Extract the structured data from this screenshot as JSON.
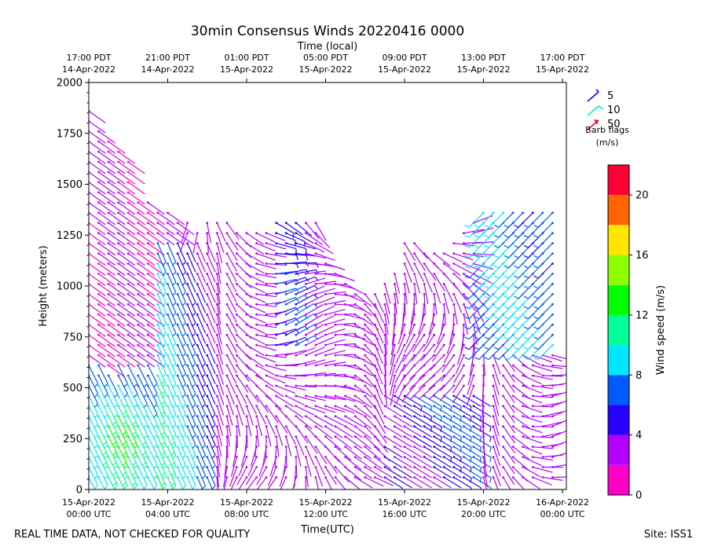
{
  "chart_data": {
    "type": "wind-barb-profile",
    "title": "30min Consensus Winds 20220416 0000",
    "top_axis_label": "Time (local)",
    "xlabel": "Time(UTC)",
    "ylabel": "Height (meters)",
    "ylim": [
      0,
      2000
    ],
    "xlim_hours_utc": [
      0,
      24.2
    ],
    "y_ticks": [
      "0",
      "250",
      "500",
      "750",
      "1000",
      "1250",
      "1500",
      "1750",
      "2000"
    ],
    "x_ticks_utc": [
      {
        "hour": 0,
        "line1": "15-Apr-2022",
        "line2": "00:00 UTC"
      },
      {
        "hour": 4,
        "line1": "15-Apr-2022",
        "line2": "04:00 UTC"
      },
      {
        "hour": 8,
        "line1": "15-Apr-2022",
        "line2": "08:00 UTC"
      },
      {
        "hour": 12,
        "line1": "15-Apr-2022",
        "line2": "12:00 UTC"
      },
      {
        "hour": 16,
        "line1": "15-Apr-2022",
        "line2": "16:00 UTC"
      },
      {
        "hour": 20,
        "line1": "15-Apr-2022",
        "line2": "20:00 UTC"
      },
      {
        "hour": 24,
        "line1": "16-Apr-2022",
        "line2": "00:00 UTC"
      }
    ],
    "x_ticks_local": [
      {
        "hour": 0,
        "line1": "17:00 PDT",
        "line2": "14-Apr-2022"
      },
      {
        "hour": 4,
        "line1": "21:00 PDT",
        "line2": "14-Apr-2022"
      },
      {
        "hour": 8,
        "line1": "01:00 PDT",
        "line2": "15-Apr-2022"
      },
      {
        "hour": 12,
        "line1": "05:00 PDT",
        "line2": "15-Apr-2022"
      },
      {
        "hour": 16,
        "line1": "09:00 PDT",
        "line2": "15-Apr-2022"
      },
      {
        "hour": 20,
        "line1": "13:00 PDT",
        "line2": "15-Apr-2022"
      },
      {
        "hour": 24,
        "line1": "17:00 PDT",
        "line2": "15-Apr-2022"
      }
    ],
    "barb_legend": {
      "items": [
        {
          "label": "5",
          "color": "#1400e6"
        },
        {
          "label": "10",
          "color": "#00f0c8"
        },
        {
          "label": "50",
          "color": "#ff0030"
        }
      ],
      "caption_line1": "Barb flags",
      "caption_line2": "(m/s)"
    },
    "colorbar": {
      "label": "Wind speed (m/s)",
      "range": [
        0,
        22
      ],
      "ticks": [
        "0",
        "4",
        "8",
        "12",
        "16",
        "20"
      ],
      "tick_values": [
        0,
        4,
        8,
        12,
        16,
        20
      ],
      "colors": [
        "#ff00c8",
        "#b400ff",
        "#2800ff",
        "#005aff",
        "#00e6ff",
        "#00ff96",
        "#00ff00",
        "#8cff00",
        "#ffe600",
        "#ff6400",
        "#ff0032"
      ]
    },
    "series_summary": [
      {
        "time_range_utc": "00:00-03:00",
        "height_range_m": [
          50,
          600
        ],
        "speed_ms": "8-16"
      },
      {
        "time_range_utc": "00:00-05:00",
        "height_range_m": [
          600,
          1900
        ],
        "speed_ms": "1-6"
      },
      {
        "time_range_utc": "03:00-06:00",
        "height_range_m": [
          50,
          1250
        ],
        "speed_ms": "5-14"
      },
      {
        "time_range_utc": "06:00-16:00",
        "height_range_m": [
          50,
          1350
        ],
        "speed_ms": "1-5"
      },
      {
        "time_range_utc": "15:00-20:00",
        "height_range_m": [
          50,
          500
        ],
        "speed_ms": "4-7"
      },
      {
        "time_range_utc": "20:00-24:00",
        "height_range_m": [
          700,
          1400
        ],
        "speed_ms": "6-9"
      }
    ]
  },
  "footer": {
    "left": "REAL TIME DATA, NOT CHECKED FOR QUALITY",
    "right": "Site: ISS1"
  }
}
